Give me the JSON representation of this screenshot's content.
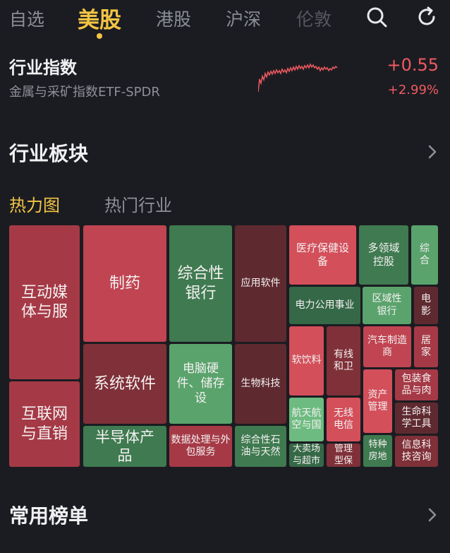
{
  "tabs": [
    {
      "label": "自选",
      "state": "normal"
    },
    {
      "label": "美股",
      "state": "active"
    },
    {
      "label": "港股",
      "state": "normal"
    },
    {
      "label": "沪深",
      "state": "normal"
    },
    {
      "label": "伦敦",
      "state": "muted"
    }
  ],
  "icons": {
    "search": "search-icon",
    "refresh": "refresh-icon"
  },
  "index": {
    "title": "行业指数",
    "subtitle": "金属与采矿指数ETF-SPDR",
    "change": "+0.55",
    "change_pct": "+2.99%",
    "up_color": "#f05a62"
  },
  "sections": {
    "industry": "行业板块",
    "lists": "常用榜单"
  },
  "subtabs": [
    "热力图",
    "热门行业"
  ],
  "heatmap": [
    {
      "label": "互动媒体与服",
      "color": "r2"
    },
    {
      "label": "互联网与直销",
      "color": "r2"
    },
    {
      "label": "制药",
      "color": "r1"
    },
    {
      "label": "系统软件",
      "color": "r3"
    },
    {
      "label": "半导体产品",
      "color": "g2"
    },
    {
      "label": "综合性银行",
      "color": "g2"
    },
    {
      "label": "电脑硬件、储存设",
      "color": "g1"
    },
    {
      "label": "数据处理与外包服务",
      "color": "r2"
    },
    {
      "label": "应用软件",
      "color": "r4"
    },
    {
      "label": "生物科技",
      "color": "r4"
    },
    {
      "label": "综合性石油与天然",
      "color": "g2"
    },
    {
      "label": "医疗保健设备",
      "color": "r5"
    },
    {
      "label": "多领域控股",
      "color": "g2"
    },
    {
      "label": "综合",
      "color": "g1"
    },
    {
      "label": "电力公用事业",
      "color": "g3"
    },
    {
      "label": "区域性银行",
      "color": "g1"
    },
    {
      "label": "电影",
      "color": "r4"
    },
    {
      "label": "软饮料",
      "color": "r5"
    },
    {
      "label": "有线和卫",
      "color": "r3"
    },
    {
      "label": "汽车制造商",
      "color": "r1"
    },
    {
      "label": "居家",
      "color": "r2"
    },
    {
      "label": "资产管理",
      "color": "r5"
    },
    {
      "label": "包装食品与肉",
      "color": "r2"
    },
    {
      "label": "航天航空与国",
      "color": "g4"
    },
    {
      "label": "无线电信",
      "color": "r5"
    },
    {
      "label": "生命科学工具",
      "color": "r4"
    },
    {
      "label": "大卖场与超市",
      "color": "g3"
    },
    {
      "label": "管理型保",
      "color": "r3"
    },
    {
      "label": "特种房地",
      "color": "g2"
    },
    {
      "label": "信息科技咨询",
      "color": "r3"
    }
  ]
}
